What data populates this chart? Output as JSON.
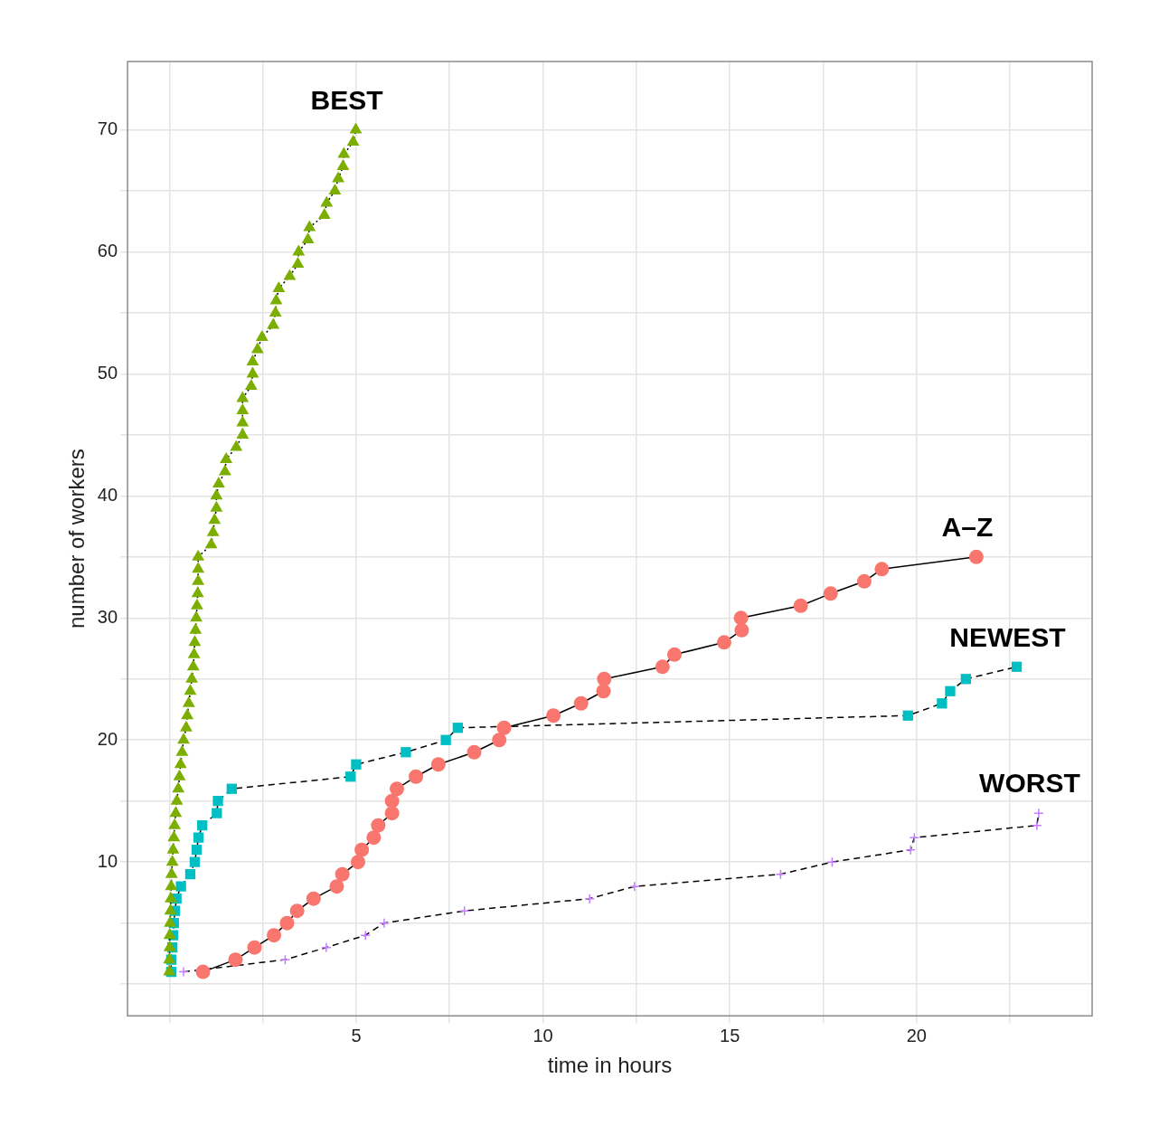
{
  "chart_data": {
    "type": "line",
    "xlabel": "time in hours",
    "ylabel": "number of workers",
    "xlim": [
      -1.12,
      24.7
    ],
    "ylim": [
      -2.6,
      75.6
    ],
    "xticks": [
      {
        "value": 0,
        "label": null
      },
      {
        "value": 2.5,
        "label": null
      },
      5,
      {
        "value": 7.5,
        "label": null
      },
      10,
      {
        "value": 12.5,
        "label": null
      },
      15,
      {
        "value": 17.5,
        "label": null
      },
      20,
      {
        "value": 22.5,
        "label": null
      }
    ],
    "yticks": [
      {
        "value": 0,
        "label": null
      },
      {
        "value": 5,
        "label": null
      },
      10,
      {
        "value": 15,
        "label": null
      },
      20,
      {
        "value": 25,
        "label": null
      },
      30,
      {
        "value": 35,
        "label": null
      },
      40,
      {
        "value": 45,
        "label": null
      },
      50,
      {
        "value": 55,
        "label": null
      },
      60,
      {
        "value": 65,
        "label": null
      },
      70
    ],
    "grid": true,
    "legend": false,
    "series": [
      {
        "name": "BEST",
        "color": "#7cae00",
        "marker": "triangle",
        "line_style": "dotted",
        "x": [
          0,
          0,
          0.01,
          0.01,
          0.02,
          0.03,
          0.04,
          0.05,
          0.06,
          0.08,
          0.1,
          0.12,
          0.14,
          0.17,
          0.2,
          0.24,
          0.27,
          0.3,
          0.34,
          0.38,
          0.45,
          0.48,
          0.52,
          0.56,
          0.6,
          0.64,
          0.66,
          0.68,
          0.7,
          0.72,
          0.74,
          0.76,
          0.77,
          0.77,
          0.77,
          1.12,
          1.17,
          1.21,
          1.26,
          1.26,
          1.32,
          1.49,
          1.52,
          1.79,
          1.96,
          1.96,
          1.96,
          1.96,
          2.19,
          2.23,
          2.23,
          2.36,
          2.48,
          2.78,
          2.84,
          2.86,
          2.93,
          3.22,
          3.44,
          3.46,
          3.71,
          3.75,
          4.15,
          4.21,
          4.43,
          4.52,
          4.65,
          4.67,
          4.92,
          4.99
        ],
        "values": [
          1,
          2,
          3,
          4,
          5,
          6,
          7,
          8,
          9,
          10,
          11,
          12,
          13,
          14,
          15,
          16,
          17,
          18,
          19,
          20,
          21,
          22,
          23,
          24,
          25,
          26,
          27,
          28,
          29,
          30,
          31,
          32,
          33,
          34,
          35,
          36,
          37,
          38,
          39,
          40,
          41,
          42,
          43,
          44,
          45,
          46,
          47,
          48,
          49,
          50,
          51,
          52,
          53,
          54,
          55,
          56,
          57,
          58,
          59,
          60,
          61,
          62,
          63,
          64,
          65,
          66,
          67,
          68,
          69,
          70
        ]
      },
      {
        "name": "A–Z",
        "color": "#f8766d",
        "marker": "circle",
        "line_style": "solid",
        "x": [
          0.9,
          1.77,
          2.28,
          2.8,
          3.15,
          3.42,
          3.86,
          4.48,
          4.63,
          5.05,
          5.15,
          5.47,
          5.59,
          5.96,
          5.96,
          6.09,
          6.6,
          7.2,
          8.16,
          8.83,
          8.96,
          10.28,
          11.02,
          11.62,
          11.64,
          13.2,
          13.52,
          14.85,
          15.32,
          15.3,
          16.9,
          17.7,
          18.6,
          19.07,
          21.6
        ],
        "values": [
          1,
          2,
          3,
          4,
          5,
          6,
          7,
          8,
          9,
          10,
          11,
          12,
          13,
          14,
          15,
          16,
          17,
          18,
          19,
          20,
          21,
          22,
          23,
          24,
          25,
          26,
          27,
          28,
          29,
          30,
          31,
          32,
          33,
          34,
          35
        ]
      },
      {
        "name": "NEWEST",
        "color": "#00bfc4",
        "marker": "square",
        "line_style": "dashed",
        "x": [
          0.05,
          0.05,
          0.08,
          0.1,
          0.12,
          0.15,
          0.19,
          0.31,
          0.56,
          0.68,
          0.73,
          0.78,
          0.88,
          1.27,
          1.3,
          1.67,
          4.85,
          5,
          6.33,
          7.4,
          7.72,
          19.77,
          20.68,
          20.9,
          21.32,
          22.68
        ],
        "values": [
          1,
          2,
          3,
          4,
          5,
          6,
          7,
          8,
          9,
          10,
          11,
          12,
          13,
          14,
          15,
          16,
          17,
          18,
          19,
          20,
          21,
          22,
          23,
          24,
          25,
          26
        ]
      },
      {
        "name": "WORST",
        "color": "#c77cff",
        "marker": "cross",
        "line_style": "dashed",
        "x": [
          0.38,
          3.1,
          4.2,
          5.25,
          5.75,
          7.9,
          11.25,
          12.45,
          16.36,
          17.74,
          19.84,
          19.94,
          23.22,
          23.27
        ],
        "values": [
          1,
          2,
          3,
          4,
          5,
          6,
          7,
          8,
          9,
          10,
          11,
          12,
          13,
          14
        ]
      }
    ]
  }
}
